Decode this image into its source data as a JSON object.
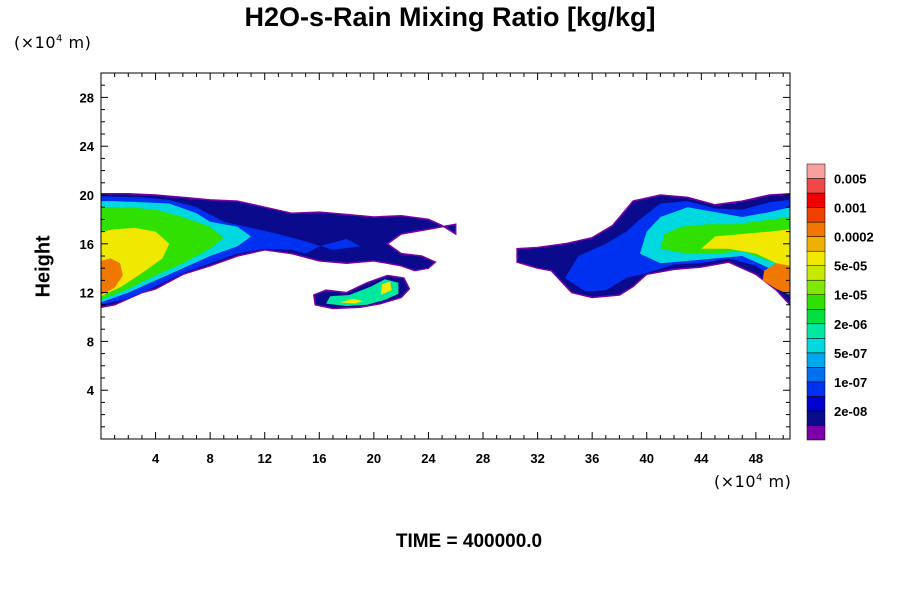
{
  "chart_data": {
    "type": "heatmap",
    "title": "H2O-s-Rain Mixing Ratio [kg/kg]",
    "ylabel": "Height",
    "xunit_prefix": "(×10",
    "xunit_exp": "4",
    "xunit_suffix": " m)",
    "yunit_prefix": "(×10",
    "yunit_exp": "4",
    "yunit_suffix": " m)",
    "footer": "TIME = 400000.0",
    "xlim": [
      0,
      50.5
    ],
    "ylim": [
      0,
      30
    ],
    "xticks": [
      4,
      8,
      12,
      16,
      20,
      24,
      28,
      32,
      36,
      40,
      44,
      48
    ],
    "yticks": [
      4,
      8,
      12,
      16,
      20,
      24,
      28
    ],
    "colorbar": {
      "colors": [
        "#7b00a8",
        "#0a0a8c",
        "#0000d0",
        "#0030f0",
        "#0070f0",
        "#00a8f0",
        "#00d8e0",
        "#00e8a0",
        "#00e040",
        "#30e000",
        "#80e800",
        "#c8e800",
        "#f0e800",
        "#f0b000",
        "#f07800",
        "#f04000",
        "#f00000",
        "#f04848",
        "#f8a0a0"
      ],
      "labels": [
        {
          "text": "2e-08",
          "index": 1
        },
        {
          "text": "1e-07",
          "index": 3
        },
        {
          "text": "5e-07",
          "index": 5
        },
        {
          "text": "2e-06",
          "index": 7
        },
        {
          "text": "1e-05",
          "index": 9
        },
        {
          "text": "5e-05",
          "index": 11
        },
        {
          "text": "0.0002",
          "index": 13
        },
        {
          "text": "0.001",
          "index": 15
        },
        {
          "text": "0.005",
          "index": 17
        }
      ]
    },
    "regions": [
      {
        "level": 1,
        "pts": [
          [
            0,
            10.8
          ],
          [
            1,
            11
          ],
          [
            2,
            11.5
          ],
          [
            3,
            12
          ],
          [
            4,
            12.3
          ],
          [
            6,
            13.5
          ],
          [
            8,
            14.2
          ],
          [
            10,
            15
          ],
          [
            12,
            15.5
          ],
          [
            14,
            15.2
          ],
          [
            16,
            14.6
          ],
          [
            18,
            14.4
          ],
          [
            20,
            14.6
          ],
          [
            22,
            14.2
          ],
          [
            23,
            13.8
          ],
          [
            24,
            14
          ],
          [
            24.5,
            14.5
          ],
          [
            23.5,
            15
          ],
          [
            22,
            15.2
          ],
          [
            21,
            16
          ],
          [
            22,
            16.8
          ],
          [
            24,
            17.2
          ],
          [
            26,
            17.6
          ],
          [
            26,
            16.8
          ],
          [
            25,
            17.5
          ],
          [
            24,
            18
          ],
          [
            22,
            18.3
          ],
          [
            20,
            18.2
          ],
          [
            18,
            18.4
          ],
          [
            16,
            18.6
          ],
          [
            14,
            18.5
          ],
          [
            12,
            19
          ],
          [
            10,
            19.5
          ],
          [
            8,
            19.6
          ],
          [
            6,
            19.8
          ],
          [
            4,
            20
          ],
          [
            2,
            20.1
          ],
          [
            0,
            20.1
          ]
        ]
      },
      {
        "level": 3,
        "pts": [
          [
            0,
            11
          ],
          [
            2,
            11.5
          ],
          [
            4,
            12.5
          ],
          [
            6,
            13.6
          ],
          [
            8,
            14.4
          ],
          [
            10,
            15.2
          ],
          [
            12,
            15.6
          ],
          [
            14,
            15.5
          ],
          [
            15,
            15.2
          ],
          [
            16,
            15.8
          ],
          [
            18,
            16.4
          ],
          [
            19,
            15.8
          ],
          [
            17,
            15.5
          ],
          [
            15,
            16.2
          ],
          [
            13,
            16.8
          ],
          [
            11,
            17.3
          ],
          [
            9,
            17.8
          ],
          [
            7,
            19
          ],
          [
            5,
            19.6
          ],
          [
            3,
            19.8
          ],
          [
            0,
            19.9
          ]
        ]
      },
      {
        "level": 6,
        "pts": [
          [
            0,
            11.2
          ],
          [
            2,
            12
          ],
          [
            4,
            13
          ],
          [
            6,
            14
          ],
          [
            8,
            15
          ],
          [
            10,
            15.8
          ],
          [
            11,
            16.6
          ],
          [
            10,
            17.4
          ],
          [
            8,
            17.8
          ],
          [
            7,
            18.5
          ],
          [
            5,
            19.3
          ],
          [
            3,
            19.4
          ],
          [
            1,
            19.5
          ],
          [
            0,
            19.5
          ]
        ]
      },
      {
        "level": 9,
        "pts": [
          [
            0,
            11.4
          ],
          [
            2,
            12.3
          ],
          [
            4,
            13.4
          ],
          [
            6,
            14.4
          ],
          [
            8,
            15.6
          ],
          [
            9,
            16.5
          ],
          [
            8,
            17.4
          ],
          [
            6,
            18.2
          ],
          [
            4,
            18.8
          ],
          [
            2,
            19
          ],
          [
            0,
            19
          ]
        ]
      },
      {
        "level": 12,
        "pts": [
          [
            0,
            11.7
          ],
          [
            1.5,
            12.5
          ],
          [
            3,
            13.6
          ],
          [
            4.5,
            14.8
          ],
          [
            5,
            16
          ],
          [
            4,
            17
          ],
          [
            2.5,
            17.3
          ],
          [
            1,
            17.2
          ],
          [
            0,
            17
          ]
        ]
      },
      {
        "level": 14,
        "pts": [
          [
            0,
            11.8
          ],
          [
            1,
            12.4
          ],
          [
            1.6,
            13.4
          ],
          [
            1.4,
            14.4
          ],
          [
            0.7,
            14.8
          ],
          [
            0,
            14.6
          ]
        ]
      },
      {
        "level": 1,
        "pts": [
          [
            15.7,
            11
          ],
          [
            17,
            10.7
          ],
          [
            19,
            10.8
          ],
          [
            20.5,
            11.1
          ],
          [
            22,
            11.6
          ],
          [
            22.6,
            12.3
          ],
          [
            22.2,
            13.2
          ],
          [
            21,
            13.4
          ],
          [
            19.5,
            12.8
          ],
          [
            18,
            12
          ],
          [
            16.5,
            12.2
          ],
          [
            15.6,
            11.8
          ]
        ]
      },
      {
        "level": 7,
        "pts": [
          [
            16.5,
            11.1
          ],
          [
            18,
            10.9
          ],
          [
            19.5,
            11
          ],
          [
            20.8,
            11.4
          ],
          [
            21.8,
            11.9
          ],
          [
            21.8,
            12.8
          ],
          [
            20.8,
            13.1
          ],
          [
            19.8,
            12.5
          ],
          [
            18.2,
            11.8
          ],
          [
            16.8,
            11.7
          ]
        ]
      },
      {
        "level": 12,
        "pts": [
          [
            17.5,
            11.2
          ],
          [
            18.6,
            11.1
          ],
          [
            19.2,
            11.3
          ],
          [
            18.5,
            11.5
          ]
        ]
      },
      {
        "level": 12,
        "pts": [
          [
            20.5,
            11.8
          ],
          [
            21.3,
            12.2
          ],
          [
            21.2,
            12.9
          ],
          [
            20.6,
            12.7
          ]
        ]
      },
      {
        "level": 1,
        "pts": [
          [
            30.5,
            14.5
          ],
          [
            32,
            14
          ],
          [
            33,
            13.8
          ],
          [
            34.5,
            12
          ],
          [
            36,
            11.6
          ],
          [
            38,
            11.8
          ],
          [
            39,
            12.5
          ],
          [
            40,
            13.5
          ],
          [
            42,
            13.9
          ],
          [
            44,
            14.1
          ],
          [
            46,
            14.5
          ],
          [
            48,
            13.5
          ],
          [
            49.5,
            12.2
          ],
          [
            50.5,
            11
          ],
          [
            50.5,
            20.1
          ],
          [
            49,
            20
          ],
          [
            47,
            19.5
          ],
          [
            45,
            19.2
          ],
          [
            43,
            19.8
          ],
          [
            41,
            20
          ],
          [
            39,
            19.5
          ],
          [
            37.5,
            17.5
          ],
          [
            36,
            16.5
          ],
          [
            34,
            16
          ],
          [
            32,
            15.7
          ],
          [
            30.5,
            15.6
          ]
        ]
      },
      {
        "level": 3,
        "pts": [
          [
            34,
            13.2
          ],
          [
            35.5,
            12.1
          ],
          [
            37,
            12.2
          ],
          [
            38.5,
            13.2
          ],
          [
            40,
            13.6
          ],
          [
            42,
            14.3
          ],
          [
            44,
            14.4
          ],
          [
            46,
            14.8
          ],
          [
            48,
            14.2
          ],
          [
            49.5,
            13
          ],
          [
            50.5,
            12.2
          ],
          [
            50.5,
            19.6
          ],
          [
            49,
            19.4
          ],
          [
            47,
            18.8
          ],
          [
            45,
            18.9
          ],
          [
            43,
            19.5
          ],
          [
            41,
            19.3
          ],
          [
            39.5,
            18
          ],
          [
            38.5,
            17
          ],
          [
            37,
            16
          ],
          [
            35,
            15
          ]
        ]
      },
      {
        "level": 6,
        "pts": [
          [
            39.5,
            15.2
          ],
          [
            41,
            14.4
          ],
          [
            43,
            14.6
          ],
          [
            45,
            14.8
          ],
          [
            47,
            15
          ],
          [
            49,
            14
          ],
          [
            50.5,
            13
          ],
          [
            50.5,
            19
          ],
          [
            49,
            18.6
          ],
          [
            47,
            18.2
          ],
          [
            45,
            18.6
          ],
          [
            43,
            19
          ],
          [
            41,
            18.2
          ],
          [
            40,
            17
          ]
        ]
      },
      {
        "level": 9,
        "pts": [
          [
            41,
            15.6
          ],
          [
            43,
            15.2
          ],
          [
            45,
            15.2
          ],
          [
            47,
            15.4
          ],
          [
            49,
            14.6
          ],
          [
            50.5,
            14
          ],
          [
            50.5,
            18.2
          ],
          [
            48.5,
            17.9
          ],
          [
            46.5,
            17.6
          ],
          [
            44.5,
            17.6
          ],
          [
            42.5,
            17.4
          ],
          [
            41.3,
            16.8
          ]
        ]
      },
      {
        "level": 12,
        "pts": [
          [
            44,
            15.6
          ],
          [
            46,
            15.6
          ],
          [
            48,
            15.2
          ],
          [
            49.5,
            14.4
          ],
          [
            50.5,
            13.8
          ],
          [
            50.5,
            17.2
          ],
          [
            49,
            17
          ],
          [
            47,
            16.8
          ],
          [
            45,
            16.6
          ]
        ]
      },
      {
        "level": 14,
        "pts": [
          [
            48.5,
            13
          ],
          [
            49.5,
            12.3
          ],
          [
            50.5,
            11.8
          ],
          [
            50.5,
            14.2
          ],
          [
            49.5,
            14.4
          ],
          [
            48.6,
            13.8
          ]
        ]
      }
    ]
  }
}
